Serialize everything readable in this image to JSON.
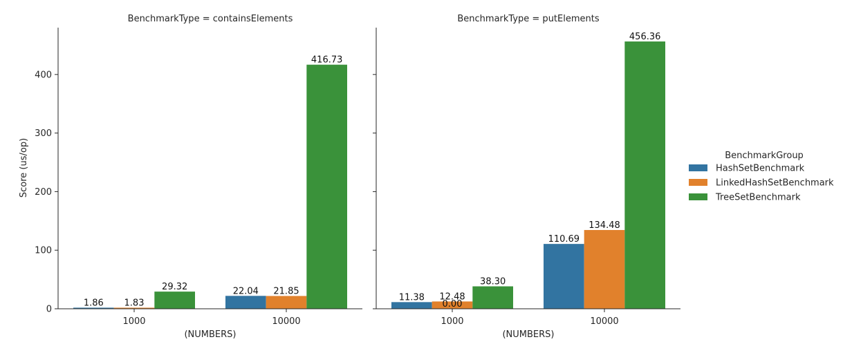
{
  "chart_data": {
    "type": "bar",
    "ylabel": "Score (us/op)",
    "xlabel": "(NUMBERS)",
    "ylim": [
      0,
      480
    ],
    "yticks": [
      0,
      100,
      200,
      300,
      400
    ],
    "categories": [
      "1000",
      "10000"
    ],
    "legend": {
      "title": "BenchmarkGroup",
      "placement": "right",
      "entries": [
        "HashSetBenchmark",
        "LinkedHashSetBenchmark",
        "TreeSetBenchmark"
      ]
    },
    "colors": {
      "HashSetBenchmark": "#3274a1",
      "LinkedHashSetBenchmark": "#e1812c",
      "TreeSetBenchmark": "#3a923a"
    },
    "facets": [
      {
        "title": "BenchmarkType = containsElements",
        "series": [
          {
            "name": "HashSetBenchmark",
            "values": [
              1.86,
              22.04
            ],
            "labels": [
              "1.86",
              "22.04"
            ]
          },
          {
            "name": "LinkedHashSetBenchmark",
            "values": [
              1.83,
              21.85
            ],
            "labels": [
              "1.83",
              "21.85"
            ]
          },
          {
            "name": "TreeSetBenchmark",
            "values": [
              29.32,
              416.73
            ],
            "labels": [
              "29.32",
              "416.73"
            ]
          }
        ]
      },
      {
        "title": "BenchmarkType = putElements",
        "series": [
          {
            "name": "HashSetBenchmark",
            "values": [
              11.38,
              110.69
            ],
            "labels": [
              "11.38",
              "110.69"
            ]
          },
          {
            "name": "LinkedHashSetBenchmark",
            "values": [
              12.48,
              134.48
            ],
            "labels": [
              "12.48",
              "134.48"
            ]
          },
          {
            "name": "TreeSetBenchmark",
            "values": [
              38.3,
              456.36
            ],
            "labels": [
              "38.30",
              "456.36"
            ]
          }
        ],
        "extra_labels": [
          {
            "series": "LinkedHashSetBenchmark",
            "category": "1000",
            "value": 0,
            "text": "0.00"
          }
        ]
      }
    ]
  }
}
